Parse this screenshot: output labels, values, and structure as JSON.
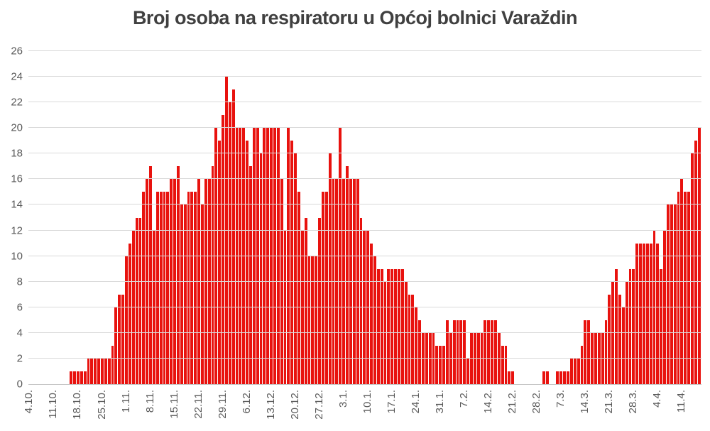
{
  "chart_data": {
    "type": "bar",
    "title": "Broj osoba na respiratoru u Općoj bolnici Varaždin",
    "xlabel": "",
    "ylabel": "",
    "ylim": [
      0,
      26
    ],
    "ytick_step": 2,
    "grid": true,
    "legend": "none",
    "bar_color": "#e8120e",
    "title_color": "#404040",
    "axis_label_color": "#595959",
    "gridline_color": "#d9d9d9",
    "background_color": "#ffffff",
    "tick_every": 7,
    "tick_labels": [
      "4.10.",
      "11.10.",
      "18.10.",
      "25.10.",
      "1.11.",
      "8.11.",
      "15.11.",
      "22.11.",
      "29.11.",
      "6.12.",
      "13.12.",
      "20.12.",
      "27.12.",
      "3.1.",
      "10.1.",
      "17.1.",
      "24.1.",
      "31.1.",
      "7.2.",
      "14.2.",
      "21.2.",
      "28.2.",
      "7.3.",
      "14.3.",
      "21.3.",
      "28.3.",
      "4.4.",
      "11.4."
    ],
    "values": [
      0,
      0,
      0,
      0,
      0,
      0,
      0,
      0,
      0,
      0,
      0,
      0,
      1,
      1,
      1,
      1,
      1,
      2,
      2,
      2,
      2,
      2,
      2,
      2,
      3,
      6,
      7,
      7,
      10,
      11,
      12,
      13,
      13,
      15,
      16,
      17,
      12,
      15,
      15,
      15,
      15,
      16,
      16,
      17,
      14,
      14,
      15,
      15,
      15,
      16,
      14,
      16,
      16,
      17,
      20,
      19,
      21,
      24,
      22,
      23,
      20,
      20,
      20,
      19,
      17,
      20,
      20,
      18,
      20,
      20,
      20,
      20,
      20,
      16,
      12,
      20,
      19,
      18,
      15,
      12,
      13,
      10,
      10,
      10,
      13,
      15,
      15,
      18,
      16,
      16,
      20,
      16,
      17,
      16,
      16,
      16,
      13,
      12,
      12,
      11,
      10,
      9,
      9,
      8,
      9,
      9,
      9,
      9,
      9,
      8,
      7,
      7,
      6,
      5,
      4,
      4,
      4,
      4,
      3,
      3,
      3,
      5,
      4,
      5,
      5,
      5,
      5,
      2,
      4,
      4,
      4,
      4,
      5,
      5,
      5,
      5,
      4,
      3,
      3,
      1,
      1,
      0,
      0,
      0,
      0,
      0,
      0,
      0,
      0,
      1,
      1,
      0,
      0,
      1,
      1,
      1,
      1,
      2,
      2,
      2,
      3,
      5,
      5,
      4,
      4,
      4,
      4,
      5,
      7,
      8,
      9,
      7,
      6,
      8,
      9,
      9,
      11,
      11,
      11,
      11,
      11,
      12,
      11,
      9,
      12,
      14,
      14,
      14,
      15,
      16,
      15,
      15,
      18,
      19,
      20
    ]
  }
}
